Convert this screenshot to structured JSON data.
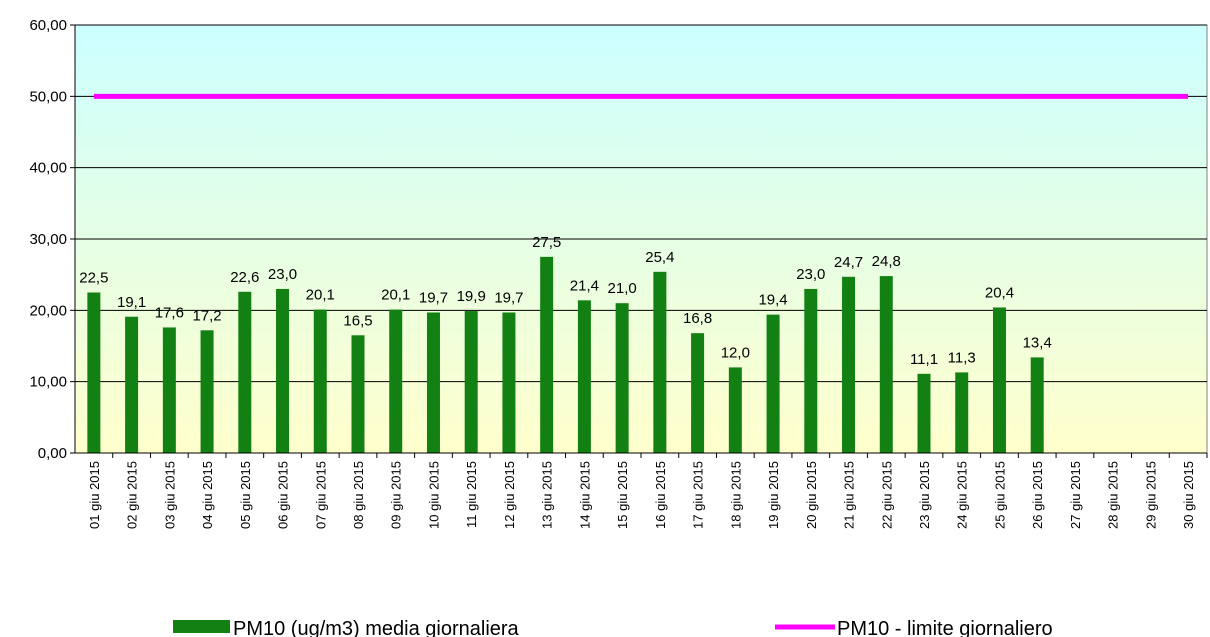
{
  "chart_data": {
    "type": "bar",
    "categories": [
      "01 giu 2015",
      "02 giu 2015",
      "03 giu 2015",
      "04 giu 2015",
      "05 giu 2015",
      "06 giu 2015",
      "07 giu 2015",
      "08 giu 2015",
      "09 giu 2015",
      "10 giu 2015",
      "11 giu 2015",
      "12 giu 2015",
      "13 giu 2015",
      "14 giu 2015",
      "15 giu 2015",
      "16 giu 2015",
      "17 giu 2015",
      "18 giu 2015",
      "19 giu 2015",
      "20 giu 2015",
      "21 giu 2015",
      "22 giu 2015",
      "23 giu 2015",
      "24 giu 2015",
      "25 giu 2015",
      "26 giu 2015",
      "27 giu 2015",
      "28 giu 2015",
      "29 giu 2015",
      "30 giu 2015"
    ],
    "series": [
      {
        "name": "PM10 (ug/m3) media giornaliera",
        "type": "bar",
        "color": "#138013",
        "values": [
          22.5,
          19.1,
          17.6,
          17.2,
          22.6,
          23.0,
          20.1,
          16.5,
          20.1,
          19.7,
          19.9,
          19.7,
          27.5,
          21.4,
          21.0,
          25.4,
          16.8,
          12.0,
          19.4,
          23.0,
          24.7,
          24.8,
          11.1,
          11.3,
          20.4,
          13.4,
          null,
          null,
          null,
          null
        ],
        "value_labels": [
          "22,5",
          "19,1",
          "17,6",
          "17,2",
          "22,6",
          "23,0",
          "20,1",
          "16,5",
          "20,1",
          "19,7",
          "19,9",
          "19,7",
          "27,5",
          "21,4",
          "21,0",
          "25,4",
          "16,8",
          "12,0",
          "19,4",
          "23,0",
          "24,7",
          "24,8",
          "11,1",
          "11,3",
          "20,4",
          "13,4",
          null,
          null,
          null,
          null
        ]
      },
      {
        "name": "PM10 - limite giornaliero",
        "type": "line",
        "color": "#ff00ff",
        "values": [
          50,
          50,
          50,
          50,
          50,
          50,
          50,
          50,
          50,
          50,
          50,
          50,
          50,
          50,
          50,
          50,
          50,
          50,
          50,
          50,
          50,
          50,
          50,
          50,
          50,
          50,
          50,
          50,
          50,
          50
        ]
      }
    ],
    "ylim": [
      0,
      60
    ],
    "yticks": [
      {
        "value": 0,
        "label": "0,00"
      },
      {
        "value": 10,
        "label": "10,00"
      },
      {
        "value": 20,
        "label": "20,00"
      },
      {
        "value": 30,
        "label": "30,00"
      },
      {
        "value": 40,
        "label": "40,00"
      },
      {
        "value": 50,
        "label": "50,00"
      },
      {
        "value": 60,
        "label": "60,00"
      }
    ],
    "grid": true
  }
}
